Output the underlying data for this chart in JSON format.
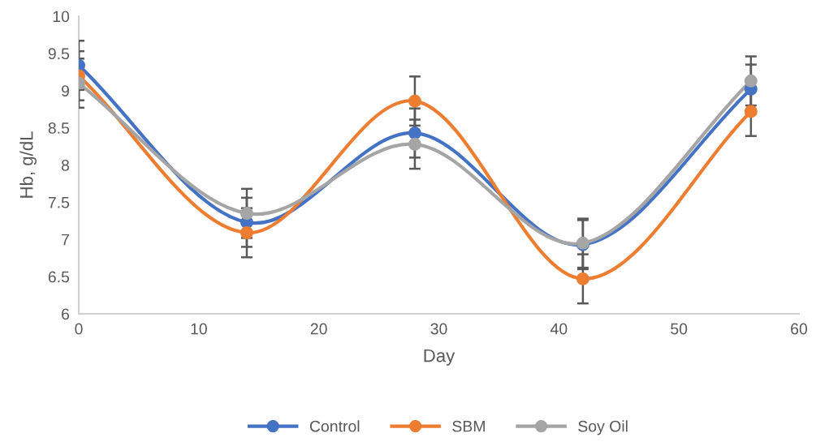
{
  "chart_data": {
    "type": "line",
    "xlabel": "Day",
    "ylabel": "Hb, g/dL",
    "x": [
      0,
      14,
      28,
      42,
      56
    ],
    "series": [
      {
        "name": "Control",
        "color": "#4472c4",
        "values": [
          9.34,
          7.23,
          8.43,
          6.93,
          9.02
        ],
        "errors": [
          0.33,
          0.33,
          0.33,
          0.33,
          0.33
        ]
      },
      {
        "name": "SBM",
        "color": "#ed7d31",
        "values": [
          9.2,
          7.09,
          8.86,
          6.47,
          8.72
        ],
        "errors": [
          0.33,
          0.33,
          0.33,
          0.33,
          0.33
        ]
      },
      {
        "name": "Soy Oil",
        "color": "#a5a5a5",
        "values": [
          9.1,
          7.35,
          8.28,
          6.95,
          9.13
        ],
        "errors": [
          0.33,
          0.33,
          0.33,
          0.33,
          0.33
        ]
      }
    ],
    "xlim": [
      0,
      60
    ],
    "xticks": [
      0,
      10,
      20,
      30,
      40,
      50,
      60
    ],
    "ylim": [
      6,
      10
    ],
    "yticks": [
      6,
      6.5,
      7,
      7.5,
      8,
      8.5,
      9,
      9.5,
      10
    ],
    "marker": "circle",
    "line_style": "solid",
    "grid": false,
    "legend": "bottom"
  }
}
